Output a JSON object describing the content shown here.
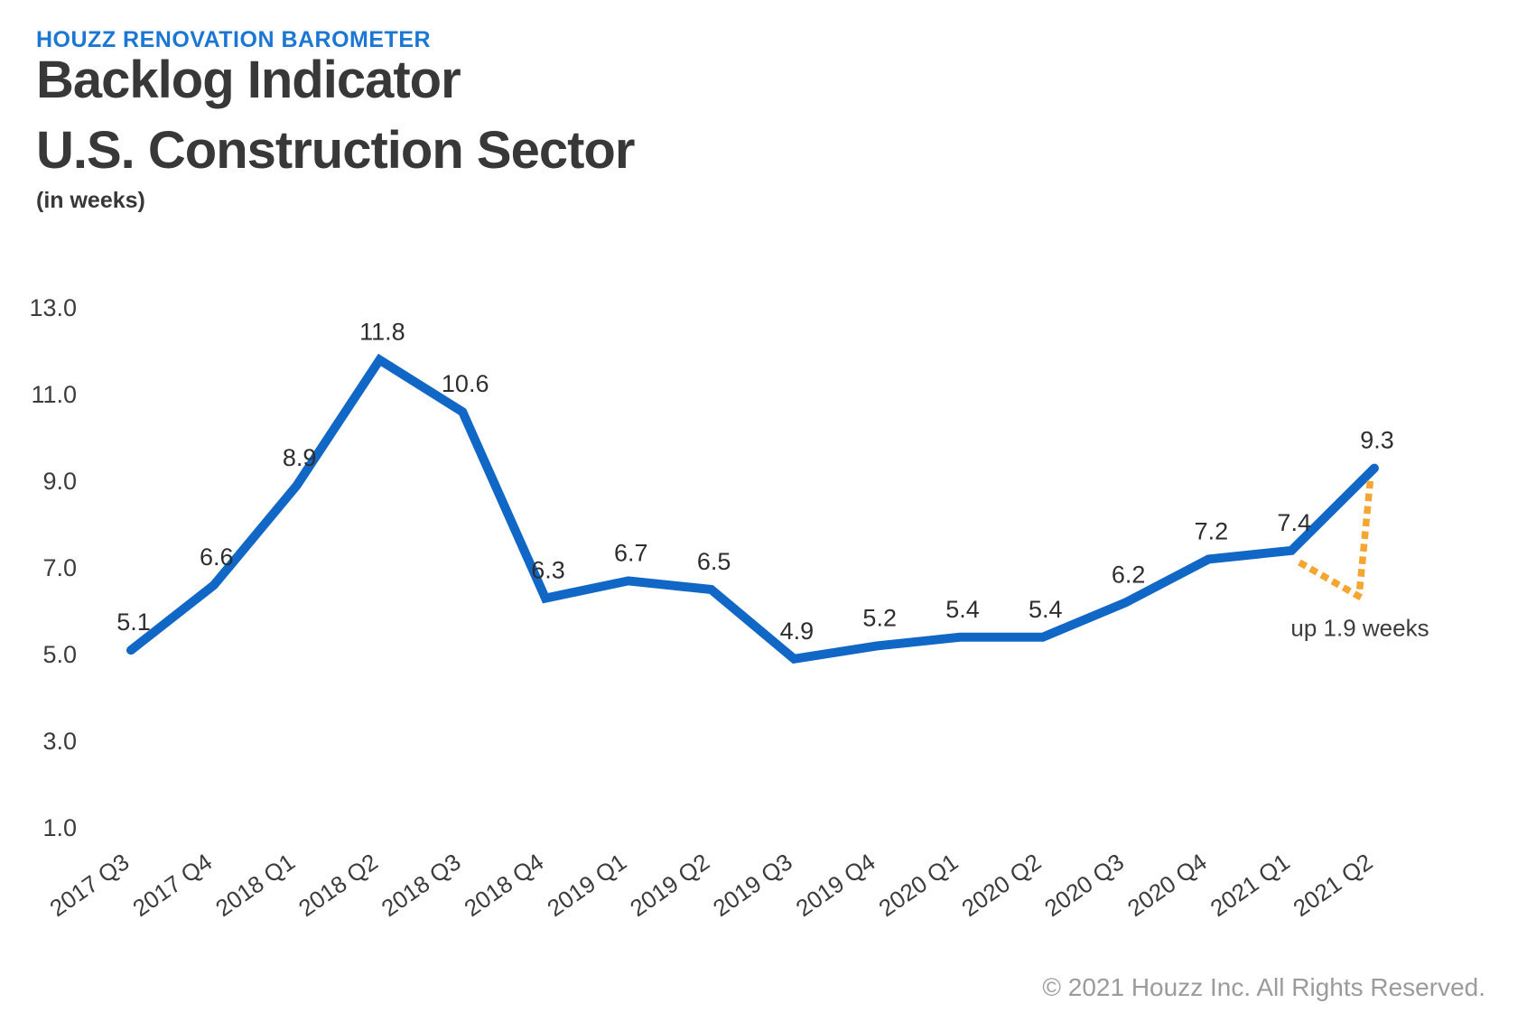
{
  "header": {
    "eyebrow": "HOUZZ RENOVATION BAROMETER",
    "title_line1": "Backlog Indicator",
    "title_line2": "U.S. Construction Sector",
    "subtitle": "(in weeks)"
  },
  "chart_data": {
    "type": "line",
    "title": "Backlog Indicator U.S. Construction Sector (in weeks)",
    "categories": [
      "2017 Q3",
      "2017 Q4",
      "2018 Q1",
      "2018 Q2",
      "2018 Q3",
      "2018 Q4",
      "2019 Q1",
      "2019 Q2",
      "2019 Q3",
      "2019 Q4",
      "2020 Q1",
      "2020 Q2",
      "2020 Q3",
      "2020 Q4",
      "2021 Q1",
      "2021 Q2"
    ],
    "values": [
      5.1,
      6.6,
      8.9,
      11.8,
      10.6,
      6.3,
      6.7,
      6.5,
      4.9,
      5.2,
      5.4,
      5.4,
      6.2,
      7.2,
      7.4,
      9.3
    ],
    "y_tick_labels": [
      "13.0",
      "11.0",
      "9.0",
      "7.0",
      "5.0",
      "3.0",
      "1.0"
    ],
    "ylim": [
      1.0,
      13.0
    ],
    "grid": false,
    "legend": "none",
    "line_color": "#1167C6",
    "label_color": "#2E2E2E",
    "tick_color": "#3C3C3C",
    "annotation": {
      "text": "up 1.9 weeks",
      "delta_weeks": 1.9,
      "color": "#F5A632",
      "text_color": "#3C3C3C"
    }
  },
  "footer": {
    "copyright": "© 2021 Houzz Inc. All Rights Reserved."
  }
}
